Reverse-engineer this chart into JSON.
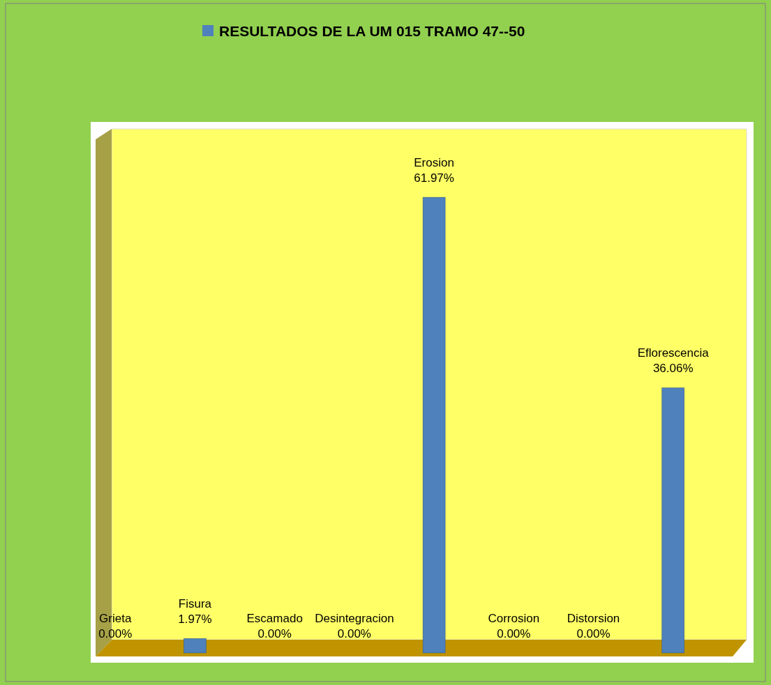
{
  "chart_data": {
    "type": "bar",
    "categories": [
      "Grieta",
      "Fisura",
      "Escamado",
      "Desintegracion",
      "Erosion",
      "Corrosion",
      "Distorsion",
      "Eflorescencia"
    ],
    "series": [
      {
        "name": "RESULTADOS DE LA UM 015 TRAMO 47--50",
        "color": "#4f81bd",
        "values": [
          0,
          1.97,
          0,
          0,
          61.97,
          0,
          0,
          36.06
        ],
        "value_labels": [
          "0.00%",
          "1.97%",
          "0.00%",
          "0.00%",
          "61.97%",
          "0.00%",
          "0.00%",
          "36.06%"
        ]
      }
    ],
    "legend": "top"
  }
}
